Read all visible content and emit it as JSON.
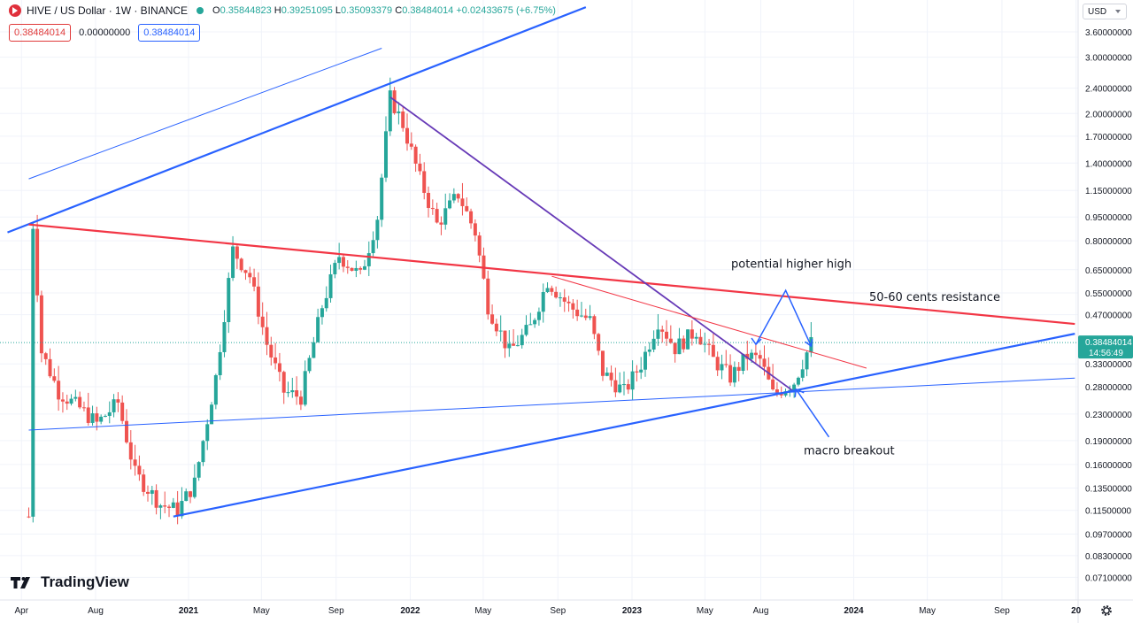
{
  "header": {
    "symbol_title": "HIVE / US Dollar · 1W · BINANCE",
    "ohlc_o_label": "O",
    "ohlc_o": "0.35844823",
    "ohlc_h_label": "H",
    "ohlc_h": "0.39251095",
    "ohlc_l_label": "L",
    "ohlc_l": "0.35093379",
    "ohlc_c_label": "C",
    "ohlc_c": "0.38484014",
    "change": "+0.02433675 (+6.75%)",
    "value_1": "0.38484014",
    "value_2": "0.00000000",
    "value_3": "0.38484014"
  },
  "currency_label": "USD",
  "brand": "TradingView",
  "icons": [
    "symbol-icon",
    "market-status-icon",
    "tradingview-logo-icon",
    "settings-gear-icon"
  ],
  "colors": {
    "up": "#26a69a",
    "down": "#ef5350",
    "blue_line": "#2962ff",
    "red_line": "#f23645",
    "purple_line": "#673ab7",
    "arrow": "#2962ff"
  },
  "chart_data": {
    "type": "candlestick",
    "title": "HIVE / US Dollar · 1W · BINANCE",
    "y_scale": "log",
    "ylim": [
      0.064,
      4.2
    ],
    "y_ticks": [
      "3.60000000",
      "3.00000000",
      "2.40000000",
      "2.00000000",
      "1.70000000",
      "1.40000000",
      "1.15000000",
      "0.95000000",
      "0.80000000",
      "0.65000000",
      "0.55000000",
      "0.47000000",
      "0.33000000",
      "0.28000000",
      "0.23000000",
      "0.19000000",
      "0.16000000",
      "0.13500000",
      "0.11500000",
      "0.09700000",
      "0.08300000",
      "0.07100000"
    ],
    "y_tick_values": [
      3.6,
      3.0,
      2.4,
      2.0,
      1.7,
      1.4,
      1.15,
      0.95,
      0.8,
      0.65,
      0.55,
      0.47,
      0.33,
      0.28,
      0.23,
      0.19,
      0.16,
      0.135,
      0.115,
      0.097,
      0.083,
      0.071
    ],
    "x_ticks": [
      "Apr",
      "Aug",
      "2021",
      "May",
      "Sep",
      "2022",
      "May",
      "Sep",
      "2023",
      "May",
      "Aug",
      "2024",
      "May",
      "Sep",
      "20"
    ],
    "x_tick_dates": [
      "2020-04-01",
      "2020-08-01",
      "2021-01-01",
      "2021-05-01",
      "2021-09-01",
      "2022-01-01",
      "2022-05-01",
      "2022-09-01",
      "2023-01-01",
      "2023-05-01",
      "2023-08-01",
      "2024-01-01",
      "2024-05-01",
      "2024-09-01",
      "2025-01-01"
    ],
    "last_price": "0.38484014",
    "countdown": "14:56:49",
    "anchors": [
      [
        "2020-04-13",
        0.11
      ],
      [
        "2020-04-20",
        0.9
      ],
      [
        "2020-05-04",
        0.36
      ],
      [
        "2020-06-01",
        0.27
      ],
      [
        "2020-07-06",
        0.24
      ],
      [
        "2020-08-03",
        0.215
      ],
      [
        "2020-09-07",
        0.25
      ],
      [
        "2020-10-05",
        0.15
      ],
      [
        "2020-11-16",
        0.12
      ],
      [
        "2020-12-14",
        0.115
      ],
      [
        "2021-01-11",
        0.14
      ],
      [
        "2021-02-15",
        0.3
      ],
      [
        "2021-03-15",
        0.75
      ],
      [
        "2021-04-12",
        0.62
      ],
      [
        "2021-05-10",
        0.38
      ],
      [
        "2021-06-07",
        0.27
      ],
      [
        "2021-07-05",
        0.26
      ],
      [
        "2021-08-09",
        0.5
      ],
      [
        "2021-09-06",
        0.72
      ],
      [
        "2021-10-11",
        0.62
      ],
      [
        "2021-11-08",
        0.95
      ],
      [
        "2021-11-29",
        2.25
      ],
      [
        "2021-12-20",
        1.85
      ],
      [
        "2022-01-17",
        1.25
      ],
      [
        "2022-02-14",
        0.9
      ],
      [
        "2022-03-21",
        1.12
      ],
      [
        "2022-04-18",
        0.85
      ],
      [
        "2022-05-09",
        0.5
      ],
      [
        "2022-06-13",
        0.36
      ],
      [
        "2022-07-18",
        0.43
      ],
      [
        "2022-08-15",
        0.6
      ],
      [
        "2022-09-19",
        0.5
      ],
      [
        "2022-10-24",
        0.45
      ],
      [
        "2022-11-14",
        0.31
      ],
      [
        "2022-12-19",
        0.27
      ],
      [
        "2023-01-16",
        0.33
      ],
      [
        "2023-02-13",
        0.45
      ],
      [
        "2023-03-13",
        0.37
      ],
      [
        "2023-04-17",
        0.42
      ],
      [
        "2023-05-15",
        0.34
      ],
      [
        "2023-06-12",
        0.3
      ],
      [
        "2023-07-10",
        0.35
      ],
      [
        "2023-07-31",
        0.34
      ],
      [
        "2023-08-21",
        0.265
      ],
      [
        "2023-09-25",
        0.29
      ],
      [
        "2023-10-23",
        0.385
      ]
    ],
    "trendlines": [
      {
        "name": "upper-channel-thin",
        "color": "#2962ff",
        "from": [
          "2020-04-13",
          1.25
        ],
        "to": [
          "2021-11-15",
          3.2
        ]
      },
      {
        "name": "upper-channel-thick",
        "color": "#2962ff",
        "from": [
          "2020-03-09",
          0.85
        ],
        "to": [
          "2022-10-17",
          4.3
        ]
      },
      {
        "name": "red-resistance",
        "color": "#f23645",
        "from": [
          "2020-04-13",
          0.9
        ],
        "to": [
          "2024-12-30",
          0.44
        ]
      },
      {
        "name": "purple-downtrend",
        "color": "#673ab7",
        "from": [
          "2021-11-29",
          2.25
        ],
        "to": [
          "2023-09-25",
          0.27
        ]
      },
      {
        "name": "lower-channel-thick",
        "color": "#2962ff",
        "from": [
          "2020-12-07",
          0.11
        ],
        "to": [
          "2024-12-30",
          0.41
        ]
      },
      {
        "name": "lower-channel-thin",
        "color": "#2962ff",
        "from": [
          "2020-04-13",
          0.205
        ],
        "to": [
          "2024-12-30",
          0.298
        ]
      },
      {
        "name": "red-thin",
        "color": "#f23645",
        "from": [
          "2022-08-22",
          0.62
        ],
        "to": [
          "2024-01-22",
          0.32
        ]
      }
    ],
    "annotations": [
      {
        "text": "potential higher high",
        "x": "2023-09-01",
        "y": 0.66
      },
      {
        "text": "50-60 cents resistance",
        "x": "2024-01-15",
        "y": 0.52
      },
      {
        "text": "macro breakout",
        "x": "2023-10-16",
        "y": 0.172
      }
    ]
  }
}
